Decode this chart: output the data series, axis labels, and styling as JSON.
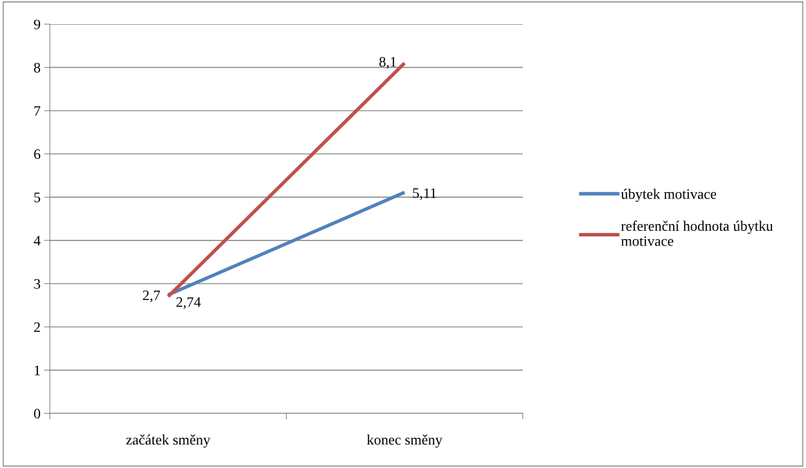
{
  "chart_data": {
    "type": "line",
    "categories": [
      "začátek směny",
      "konec směny"
    ],
    "series": [
      {
        "name": "úbytek motivace",
        "color": "#4f81bd",
        "values": [
          2.74,
          5.11
        ],
        "value_labels": [
          "2,74",
          "5,11"
        ]
      },
      {
        "name": "referenční hodnota úbytku motivace",
        "color": "#c0504d",
        "values": [
          2.7,
          8.1
        ],
        "value_labels": [
          "2,7",
          "8,1"
        ]
      }
    ],
    "ylim": [
      0,
      9
    ],
    "yticks": [
      0,
      1,
      2,
      3,
      4,
      5,
      6,
      7,
      8,
      9
    ],
    "grid": "y",
    "legend": "right",
    "marker": "none",
    "line_style": "solid"
  }
}
